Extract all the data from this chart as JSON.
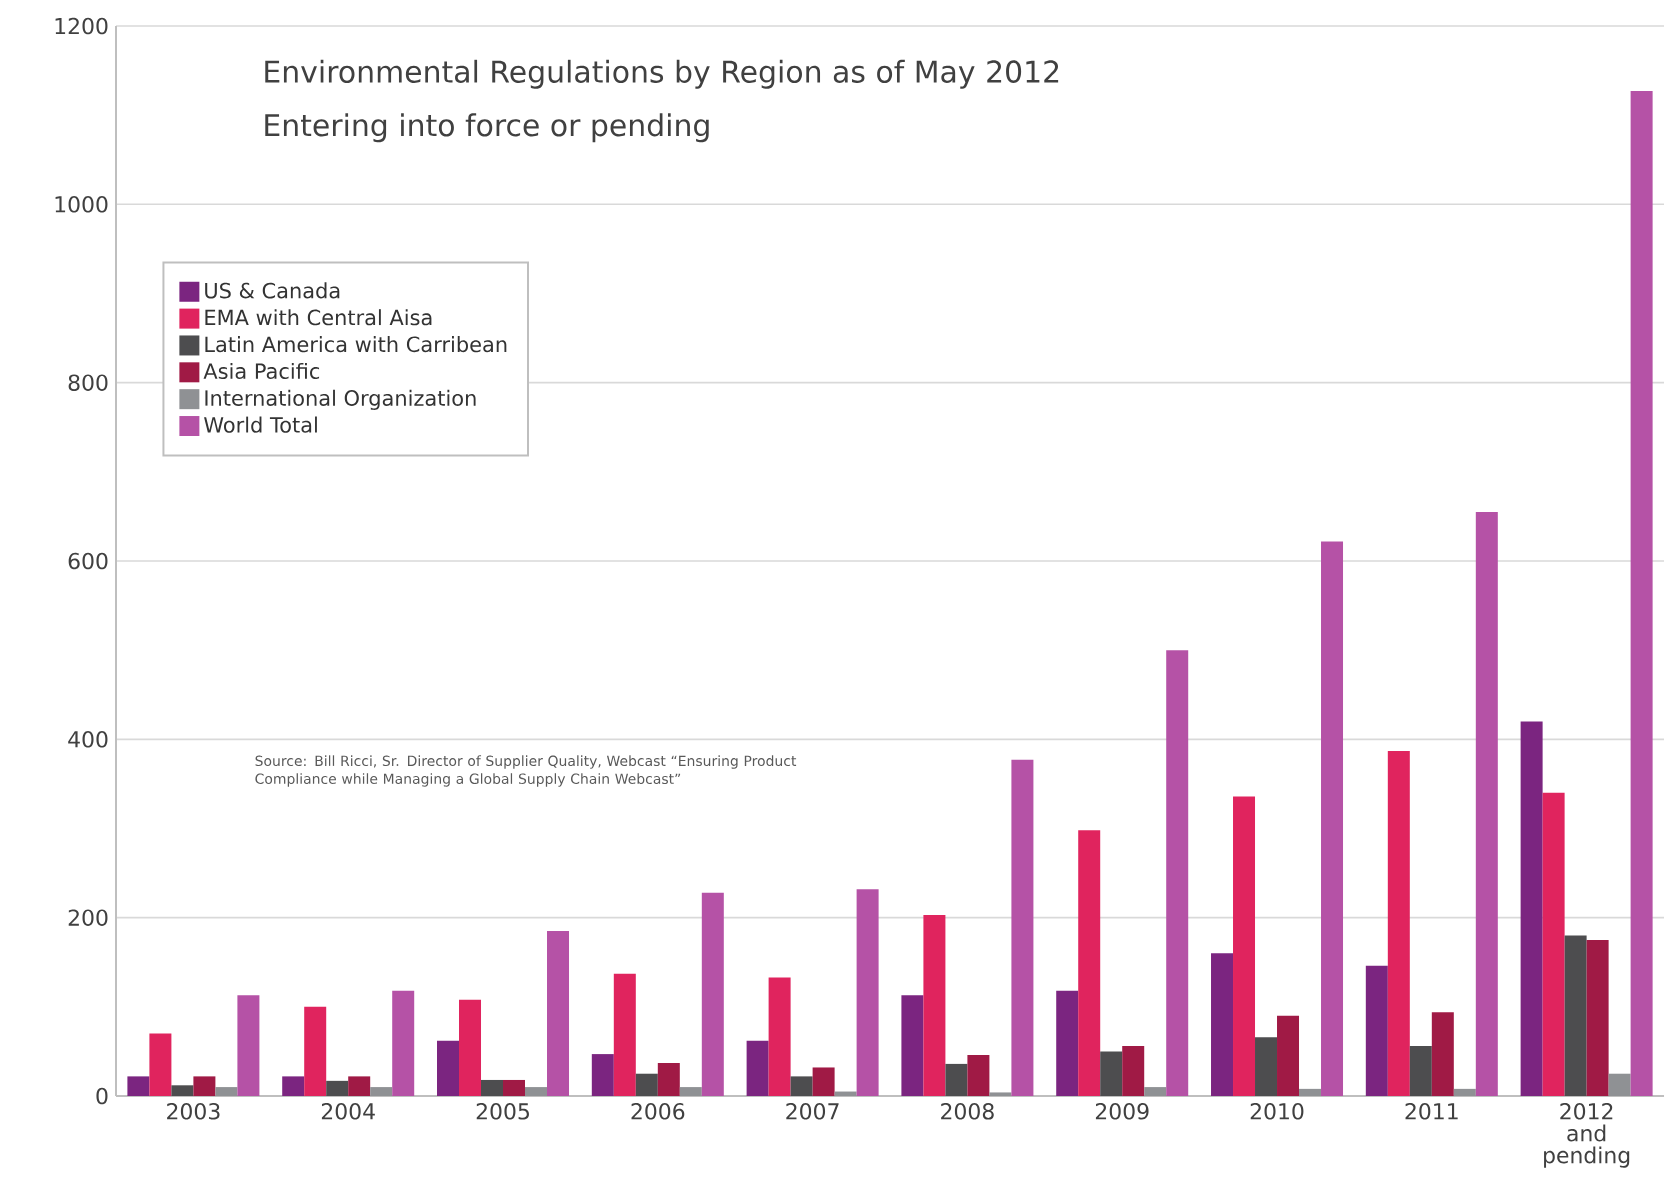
{
  "chart_data": {
    "type": "bar",
    "title": "Environmental Regulations by Region as of May 2012",
    "subtitle": "Entering into force or pending",
    "categories": [
      "2003",
      "2004",
      "2005",
      "2006",
      "2007",
      "2008",
      "2009",
      "2010",
      "2011",
      "2012 and pending"
    ],
    "series": [
      {
        "name": "US & Canada",
        "color": "#7b2580",
        "values": [
          22,
          22,
          62,
          47,
          62,
          113,
          118,
          160,
          146,
          420
        ]
      },
      {
        "name": "EMA with Central Aisa",
        "color": "#e0245e",
        "values": [
          70,
          100,
          108,
          137,
          133,
          203,
          298,
          336,
          387,
          340
        ]
      },
      {
        "name": "Latin America with Carribean",
        "color": "#4d4d4f",
        "values": [
          12,
          17,
          18,
          25,
          22,
          36,
          50,
          66,
          56,
          180
        ]
      },
      {
        "name": "Asia Pacific",
        "color": "#a01a45",
        "values": [
          22,
          22,
          18,
          37,
          32,
          46,
          56,
          90,
          94,
          175
        ]
      },
      {
        "name": "International Organization",
        "color": "#8f9194",
        "values": [
          10,
          10,
          10,
          10,
          5,
          4,
          10,
          8,
          8,
          25
        ]
      },
      {
        "name": "World Total",
        "color": "#b552a6",
        "values": [
          113,
          118,
          185,
          228,
          232,
          377,
          500,
          622,
          655,
          1127
        ]
      }
    ],
    "ylim": [
      0,
      1200
    ],
    "yticks": [
      0,
      200,
      400,
      600,
      800,
      1000,
      1200
    ],
    "grid": "y",
    "legend": "top left",
    "annotations": [
      "Source: Bill Ricci, Sr. Director of Supplier Quality, Webcast “Ensuring Product Compliance while Managing a Global Supply Chain Webcast”"
    ]
  }
}
